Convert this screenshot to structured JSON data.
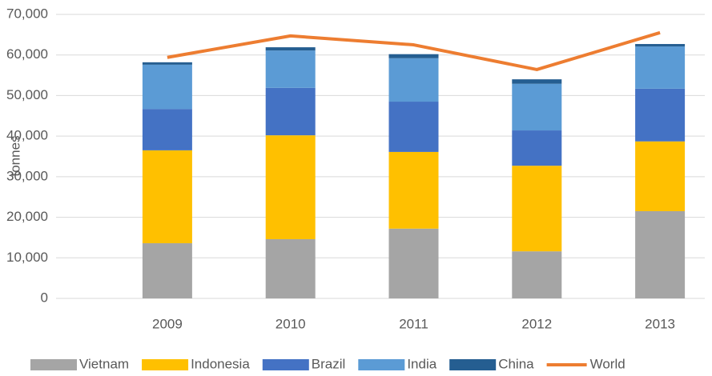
{
  "chart_data": {
    "type": "bar",
    "stacked": true,
    "y_label": "tonnes",
    "categories": [
      "2009",
      "2010",
      "2011",
      "2012",
      "2013"
    ],
    "series": [
      {
        "name": "Vietnam",
        "color": "#a5a5a5",
        "values": [
          13600,
          14600,
          17200,
          11600,
          21500
        ]
      },
      {
        "name": "Indonesia",
        "color": "#ffc000",
        "values": [
          22900,
          25600,
          18900,
          21100,
          17200
        ]
      },
      {
        "name": "Brazil",
        "color": "#4472c4",
        "values": [
          10200,
          11700,
          12400,
          8700,
          13000
        ]
      },
      {
        "name": "India",
        "color": "#5b9bd5",
        "values": [
          10900,
          9200,
          10700,
          11500,
          10400
        ]
      },
      {
        "name": "China",
        "color": "#255e91",
        "values": [
          600,
          800,
          1000,
          1100,
          600
        ]
      },
      {
        "name": "World",
        "color": "#ed7d31",
        "type": "line",
        "values": [
          59400,
          64700,
          62500,
          56400,
          65500
        ]
      }
    ],
    "ylim": [
      0,
      70000
    ],
    "yticks": [
      0,
      {
        "value": 10000,
        "label": "10,000"
      },
      {
        "value": 20000,
        "label": "20,000"
      },
      {
        "value": 30000,
        "label": "30,000"
      },
      {
        "value": 40000,
        "label": "40,000"
      },
      {
        "value": 50000,
        "label": "50,000"
      },
      {
        "value": 60000,
        "label": "60,000"
      },
      {
        "value": 70000,
        "label": "70,000"
      }
    ],
    "grid": true,
    "legend": "bottom"
  }
}
